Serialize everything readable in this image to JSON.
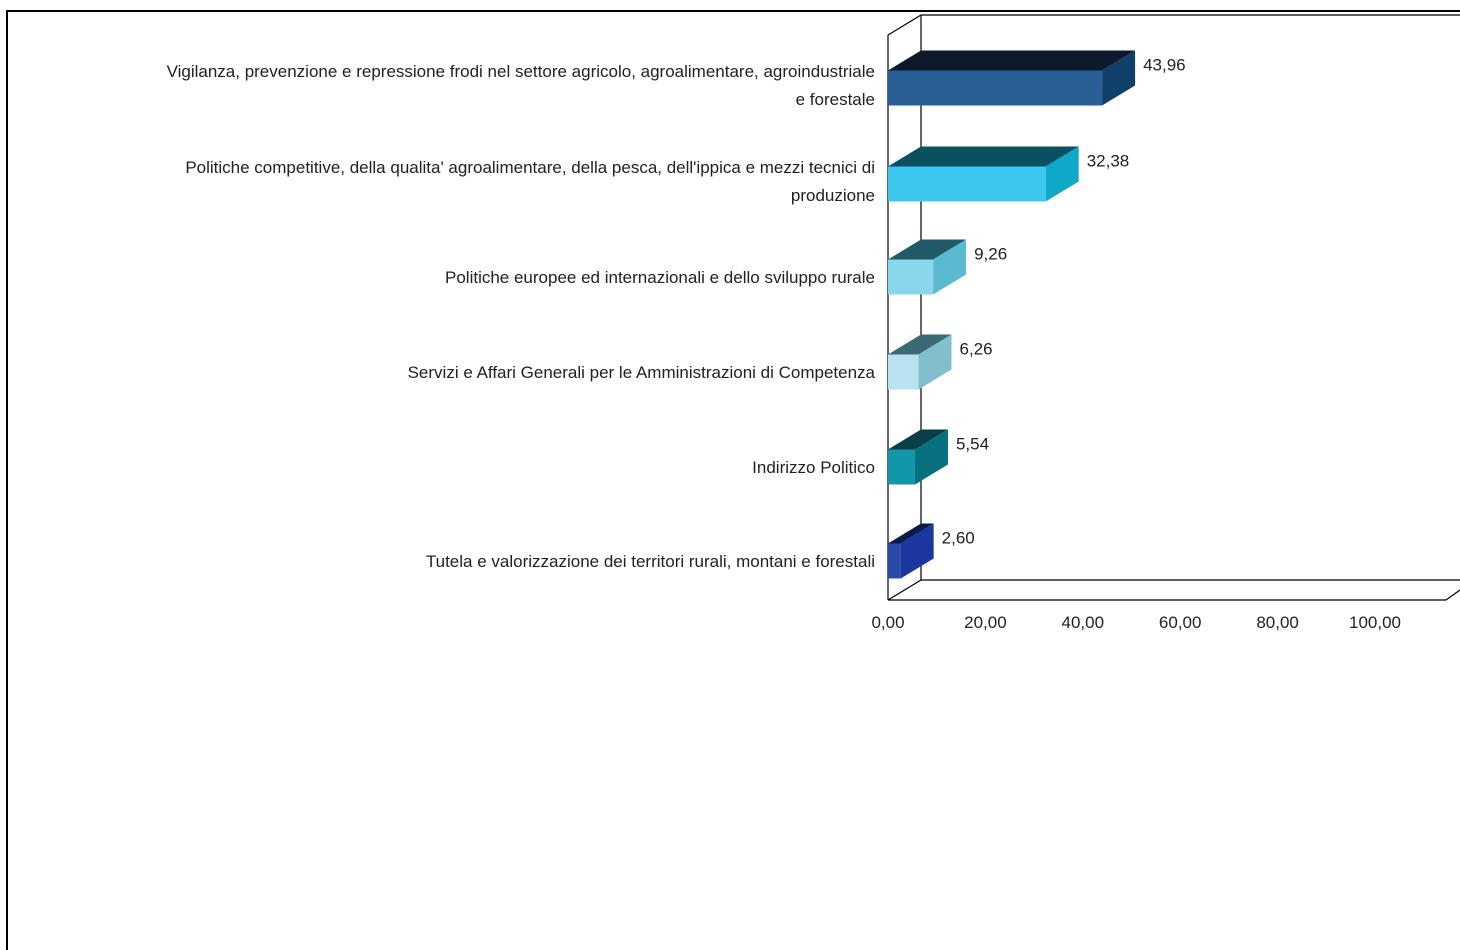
{
  "chart_data": {
    "type": "bar",
    "orientation": "horizontal",
    "style": "3d",
    "categories": [
      [
        "Vigilanza, prevenzione e repressione frodi nel settore agricolo, agroalimentare, agroindustriale",
        "e forestale"
      ],
      [
        "Politiche competitive, della qualita' agroalimentare, della pesca, dell'ippica e mezzi tecnici di",
        "produzione"
      ],
      [
        "Politiche europee ed internazionali e dello sviluppo rurale"
      ],
      [
        "Servizi e Affari Generali per le Amministrazioni di Competenza"
      ],
      [
        "Indirizzo Politico"
      ],
      [
        "Tutela e valorizzazione dei territori rurali, montani e forestali"
      ]
    ],
    "values": [
      43.96,
      32.38,
      9.26,
      6.26,
      5.54,
      2.6
    ],
    "value_labels": [
      "43,96",
      "32,38",
      "9,26",
      "6,26",
      "5,54",
      "2,60"
    ],
    "bar_colors": [
      {
        "front": "#2a5f96",
        "top": "#0d1a2b",
        "side": "#10406a"
      },
      {
        "front": "#3cc8ee",
        "top": "#0a5060",
        "side": "#10a8c8"
      },
      {
        "front": "#8ad6ea",
        "top": "#1f5a66",
        "side": "#5cbad0"
      },
      {
        "front": "#b8e2f2",
        "top": "#3c6a74",
        "side": "#82bfcc"
      },
      {
        "front": "#1496aa",
        "top": "#083f48",
        "side": "#06707e"
      },
      {
        "front": "#2a4aaa",
        "top": "#0a1a4a",
        "side": "#1c36a0"
      }
    ],
    "x_ticks": [
      "0,00",
      "20,00",
      "40,00",
      "60,00",
      "80,00",
      "100,00"
    ],
    "xlim": [
      0,
      100
    ],
    "grid": false,
    "legend": "none"
  }
}
